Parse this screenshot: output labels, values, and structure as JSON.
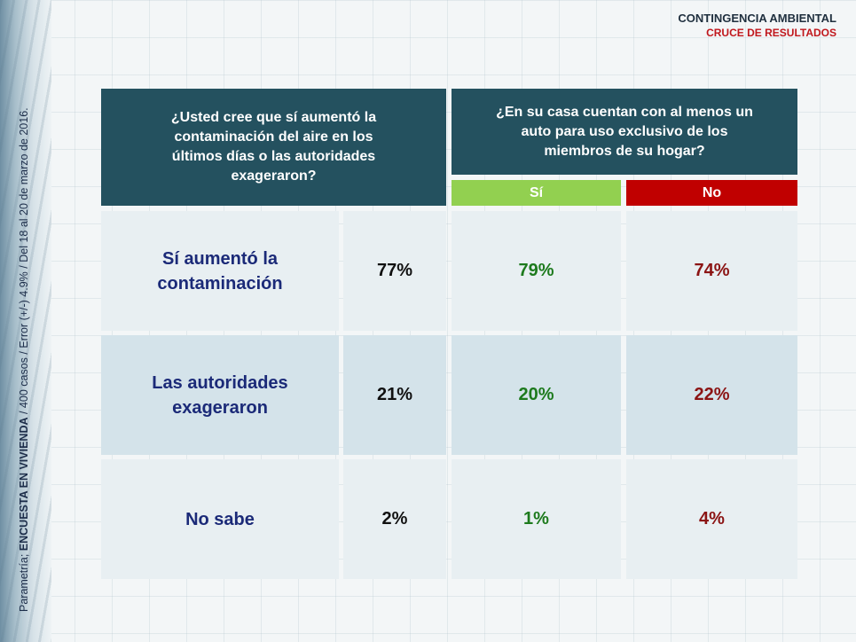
{
  "header": {
    "title": "CONTINGENCIA AMBIENTAL",
    "subtitle": "CRUCE DE RESULTADOS"
  },
  "source": {
    "prefix": "Parametría; ",
    "survey": "ENCUESTA EN VIVIENDA",
    "details": " /  400 casos / Error (+/-) 4.9% / Del 18 al 20 de marzo de 2016."
  },
  "colors": {
    "header_bg": "#24515f",
    "si_tag": "#92d050",
    "no_tag": "#c00000",
    "total_text": "#111111",
    "si_text": "#1d7a1d",
    "no_text": "#8b1414",
    "label_text": "#1b2a78",
    "row_light": "#e8eff2",
    "row_dark": "#d4e3ea"
  },
  "chart_data": {
    "type": "table",
    "question_left": "¿Usted cree que sí aumentó la contaminación del aire en los últimos días o las autoridades exageraron?",
    "question_right": "¿En su casa cuentan con al menos un auto para uso exclusivo de los miembros de su hogar?",
    "columns": [
      "Sí",
      "No"
    ],
    "rows": [
      {
        "label": "Sí aumentó la contaminación",
        "total": "77%",
        "si": "79%",
        "no": "74%"
      },
      {
        "label": "Las autoridades exageraron",
        "total": "21%",
        "si": "20%",
        "no": "22%"
      },
      {
        "label": "No sabe",
        "total": "2%",
        "si": "1%",
        "no": "4%"
      }
    ]
  }
}
